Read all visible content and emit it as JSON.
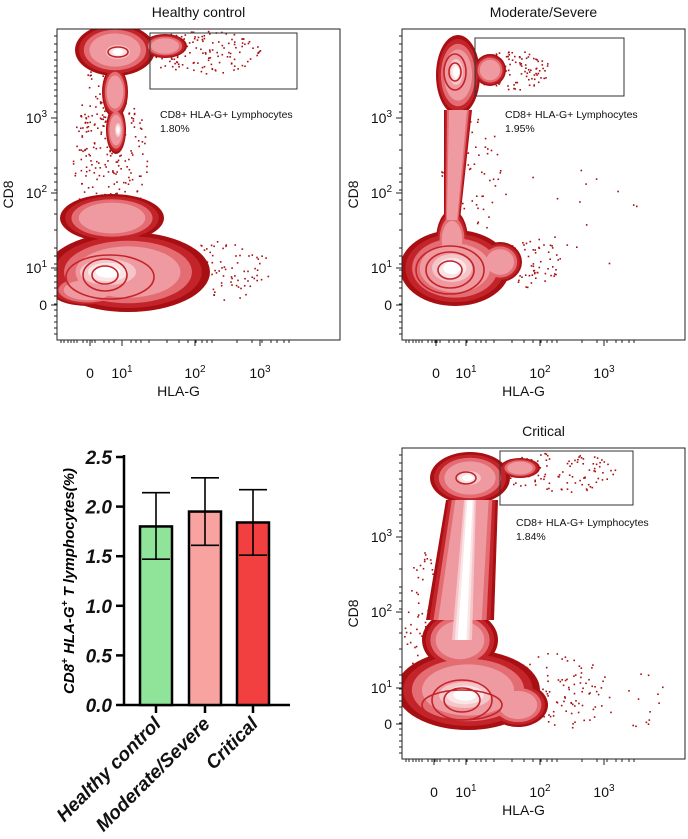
{
  "colors": {
    "outer": "#a80f12",
    "ring": "#c3242a",
    "mid": "#e46c73",
    "light": "#f4c6c9",
    "core": "#fbe4e6",
    "healthy_bar": "#8fe49a",
    "moderate_bar": "#f8a3a0",
    "critical_bar": "#f23f3f"
  },
  "chart_data": [
    {
      "type": "scatter",
      "title": "Healthy control",
      "xlabel": "HLA-G",
      "ylabel": "CD8",
      "x_ticks": [
        {
          "base": "0",
          "exp": ""
        },
        {
          "base": "10",
          "exp": "1"
        },
        {
          "base": "10",
          "exp": "2"
        },
        {
          "base": "10",
          "exp": "3"
        }
      ],
      "y_ticks": [
        {
          "base": "0",
          "exp": ""
        },
        {
          "base": "10",
          "exp": "1"
        },
        {
          "base": "10",
          "exp": "2"
        },
        {
          "base": "10",
          "exp": "3"
        }
      ],
      "gate_label": "CD8+ HLA-G+ Lymphocytes",
      "gate_percent": "1.80%"
    },
    {
      "type": "scatter",
      "title": "Moderate/Severe",
      "xlabel": "HLA-G",
      "ylabel": "CD8",
      "x_ticks": [
        {
          "base": "0",
          "exp": ""
        },
        {
          "base": "10",
          "exp": "1"
        },
        {
          "base": "10",
          "exp": "2"
        },
        {
          "base": "10",
          "exp": "3"
        }
      ],
      "y_ticks": [
        {
          "base": "0",
          "exp": ""
        },
        {
          "base": "10",
          "exp": "1"
        },
        {
          "base": "10",
          "exp": "2"
        },
        {
          "base": "10",
          "exp": "3"
        }
      ],
      "gate_label": "CD8+ HLA-G+ Lymphocytes",
      "gate_percent": "1.95%"
    },
    {
      "type": "scatter",
      "title": "Critical",
      "xlabel": "HLA-G",
      "ylabel": "CD8",
      "x_ticks": [
        {
          "base": "0",
          "exp": ""
        },
        {
          "base": "10",
          "exp": "1"
        },
        {
          "base": "10",
          "exp": "2"
        },
        {
          "base": "10",
          "exp": "3"
        }
      ],
      "y_ticks": [
        {
          "base": "0",
          "exp": ""
        },
        {
          "base": "10",
          "exp": "1"
        },
        {
          "base": "10",
          "exp": "2"
        },
        {
          "base": "10",
          "exp": "3"
        }
      ],
      "gate_label": "CD8+ HLA-G+ Lymphocytes",
      "gate_percent": "1.84%"
    },
    {
      "type": "bar",
      "ylabel": {
        "pre": "CD8",
        "sup1": "+",
        "mid": " HLA-G",
        "sup2": "+",
        "post": " T lymphocytes(%)"
      },
      "categories": [
        "Healthy control",
        "Moderate/Severe",
        "Critical"
      ],
      "values": [
        1.8,
        1.95,
        1.84
      ],
      "error_low": [
        1.47,
        1.61,
        1.51
      ],
      "error_high": [
        2.14,
        2.29,
        2.17
      ],
      "ylim": [
        0.0,
        2.5
      ],
      "y_ticks": [
        "0.0",
        "0.5",
        "1.0",
        "1.5",
        "2.0",
        "2.5"
      ],
      "y_tick_values": [
        0.0,
        0.5,
        1.0,
        1.5,
        2.0,
        2.5
      ]
    }
  ]
}
